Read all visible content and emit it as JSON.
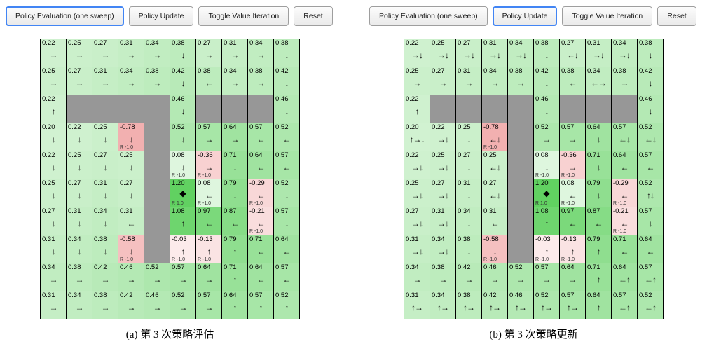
{
  "colors": {
    "accent_active_button": "#4285f4",
    "wall": "#979797",
    "grid_line": "#000000",
    "positive_strong": "#60d460",
    "positive_light": "#d9f0d9",
    "negative_strong": "#f1a7a7",
    "background": "#ffffff"
  },
  "markers": {
    "agent": "◆"
  },
  "arrow_glyphs": {
    "U": "↑",
    "D": "↓",
    "L": "←",
    "R": "→"
  },
  "panels": [
    {
      "id": "a",
      "caption": "(a) 第 3 次策略评估",
      "buttons": [
        {
          "label": "Policy Evaluation (one sweep)",
          "active": true
        },
        {
          "label": "Policy Update",
          "active": false
        },
        {
          "label": "Toggle Value Iteration",
          "active": false
        },
        {
          "label": "Reset",
          "active": false
        }
      ],
      "grid_rows": [
        [
          "0.22|R",
          "0.25|R",
          "0.27|R",
          "0.31|R",
          "0.34|R",
          "0.38|D",
          "0.27|R",
          "0.31|R",
          "0.34|R",
          "0.38|D"
        ],
        [
          "0.25|R",
          "0.27|R",
          "0.31|R",
          "0.34|R",
          "0.38|R",
          "0.42|D",
          "0.38|L",
          "0.34|R",
          "0.38|R",
          "0.42|D"
        ],
        [
          "0.22|U",
          "W",
          "W",
          "W",
          "W",
          "0.46|D",
          "W",
          "W",
          "W",
          "0.46|D"
        ],
        [
          "0.20|D",
          "0.22|D",
          "0.25|D",
          "-0.78|D|R -1.0",
          "W",
          "0.52|D",
          "0.57|R",
          "0.64|R",
          "0.57|L",
          "0.52|L"
        ],
        [
          "0.22|D",
          "0.25|D",
          "0.27|D",
          "0.25|D",
          "W",
          "0.08|D|R -1.0",
          "-0.36|R|R -1.0",
          "0.71|D",
          "0.64|L",
          "0.57|L"
        ],
        [
          "0.25|D",
          "0.27|D",
          "0.31|D",
          "0.27|D",
          "W",
          "1.20|*|R 1.0",
          "0.08|L|R -1.0",
          "0.79|D",
          "-0.29|L|R -1.0",
          "0.52|D"
        ],
        [
          "0.27|D",
          "0.31|D",
          "0.34|D",
          "0.31|L",
          "W",
          "1.08|U",
          "0.97|L",
          "0.87|L",
          "-0.21|L|R -1.0",
          "0.57|D"
        ],
        [
          "0.31|D",
          "0.34|D",
          "0.38|D",
          "-0.58|D|R -1.0",
          "W",
          "-0.03|U|R -1.0",
          "-0.13|U|R -1.0",
          "0.79|U",
          "0.71|L",
          "0.64|L"
        ],
        [
          "0.34|R",
          "0.38|R",
          "0.42|R",
          "0.46|R",
          "0.52|R",
          "0.57|R",
          "0.64|R",
          "0.71|U",
          "0.64|L",
          "0.57|L"
        ],
        [
          "0.31|R",
          "0.34|R",
          "0.38|R",
          "0.42|R",
          "0.46|R",
          "0.52|R",
          "0.57|R",
          "0.64|U",
          "0.57|U",
          "0.52|U"
        ]
      ]
    },
    {
      "id": "b",
      "caption": "(b) 第 3 次策略更新",
      "buttons": [
        {
          "label": "Policy Evaluation (one sweep)",
          "active": false
        },
        {
          "label": "Policy Update",
          "active": true
        },
        {
          "label": "Toggle Value Iteration",
          "active": false
        },
        {
          "label": "Reset",
          "active": false
        }
      ],
      "grid_rows": [
        [
          "0.22|RD",
          "0.25|RD",
          "0.27|RD",
          "0.31|RD",
          "0.34|RD",
          "0.38|D",
          "0.27|LD",
          "0.31|RD",
          "0.34|RD",
          "0.38|D"
        ],
        [
          "0.25|R",
          "0.27|R",
          "0.31|R",
          "0.34|R",
          "0.38|R",
          "0.42|D",
          "0.38|L",
          "0.34|LR",
          "0.38|R",
          "0.42|D"
        ],
        [
          "0.22|U",
          "W",
          "W",
          "W",
          "W",
          "0.46|D",
          "W",
          "W",
          "W",
          "0.46|D"
        ],
        [
          "0.20|URD",
          "0.22|RD",
          "0.25|D",
          "-0.78|LD|R -1.0",
          "W",
          "0.52|R",
          "0.57|R",
          "0.64|D",
          "0.57|LD",
          "0.52|LD"
        ],
        [
          "0.22|RD",
          "0.25|RD",
          "0.27|D",
          "0.25|LD",
          "W",
          "0.08|D|R -1.0",
          "-0.36|R|R -1.0",
          "0.71|D",
          "0.64|L",
          "0.57|L"
        ],
        [
          "0.25|RD",
          "0.27|RD",
          "0.31|D",
          "0.27|LD",
          "W",
          "1.20|*|R 1.0",
          "0.08|L|R -1.0",
          "0.79|D",
          "-0.29|L|R -1.0",
          "0.52|UD"
        ],
        [
          "0.27|RD",
          "0.31|RD",
          "0.34|D",
          "0.31|L",
          "W",
          "1.08|U",
          "0.97|L",
          "0.87|L",
          "-0.21|L|R -1.0",
          "0.57|D"
        ],
        [
          "0.31|RD",
          "0.34|RD",
          "0.38|D",
          "-0.58|D|R -1.0",
          "W",
          "-0.03|U|R -1.0",
          "-0.13|U|R -1.0",
          "0.79|U",
          "0.71|L",
          "0.64|L"
        ],
        [
          "0.34|R",
          "0.38|R",
          "0.42|R",
          "0.46|R",
          "0.52|R",
          "0.57|R",
          "0.64|R",
          "0.71|U",
          "0.64|LU",
          "0.57|LU"
        ],
        [
          "0.31|UR",
          "0.34|UR",
          "0.38|UR",
          "0.42|UR",
          "0.46|UR",
          "0.52|UR",
          "0.57|UR",
          "0.64|U",
          "0.57|LU",
          "0.52|LU"
        ]
      ]
    }
  ]
}
